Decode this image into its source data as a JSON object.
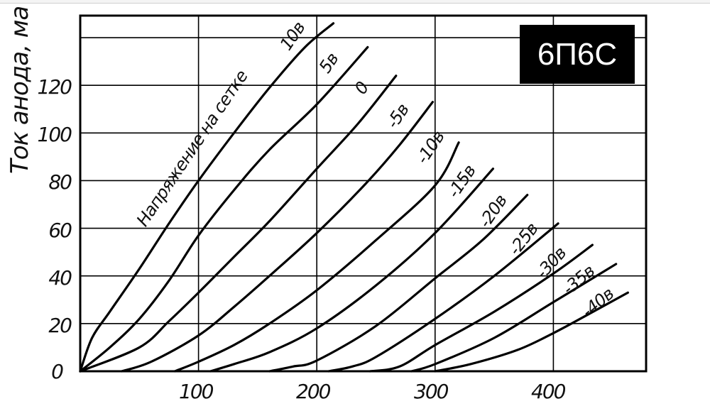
{
  "chart_data": {
    "type": "line",
    "title": "6П6С",
    "xlabel": "",
    "ylabel": "Ток анода, ма",
    "xlim": [
      0,
      478
    ],
    "ylim": [
      0,
      149
    ],
    "x_ticks": [
      "100",
      "200",
      "300",
      "400"
    ],
    "y_ticks": [
      "0",
      "20",
      "40",
      "60",
      "80",
      "100",
      "120"
    ],
    "grid": true,
    "grid_x": [
      100,
      200,
      300,
      400
    ],
    "grid_y": [
      20,
      40,
      60,
      80,
      100,
      120,
      140
    ],
    "legend_title": "Напряжение на сетке",
    "series": [
      {
        "name": "10в",
        "points": [
          [
            0,
            0
          ],
          [
            10,
            14
          ],
          [
            25,
            25
          ],
          [
            50,
            43
          ],
          [
            75,
            62
          ],
          [
            100,
            80
          ],
          [
            130,
            100
          ],
          [
            160,
            119
          ],
          [
            190,
            136
          ],
          [
            214,
            146
          ]
        ]
      },
      {
        "name": "5в",
        "points": [
          [
            0,
            0
          ],
          [
            25,
            10
          ],
          [
            50,
            22
          ],
          [
            75,
            38
          ],
          [
            100,
            57
          ],
          [
            130,
            76
          ],
          [
            160,
            93
          ],
          [
            200,
            112
          ],
          [
            243,
            136
          ]
        ]
      },
      {
        "name": "0",
        "points": [
          [
            0,
            0
          ],
          [
            50,
            10
          ],
          [
            75,
            21
          ],
          [
            100,
            33
          ],
          [
            130,
            48
          ],
          [
            160,
            63
          ],
          [
            200,
            85
          ],
          [
            235,
            104
          ],
          [
            267,
            124
          ]
        ]
      },
      {
        "name": "-5в",
        "points": [
          [
            35,
            0
          ],
          [
            60,
            4
          ],
          [
            100,
            15
          ],
          [
            130,
            27
          ],
          [
            160,
            40
          ],
          [
            200,
            58
          ],
          [
            240,
            78
          ],
          [
            270,
            95
          ],
          [
            298,
            113
          ]
        ]
      },
      {
        "name": "-10в",
        "points": [
          [
            80,
            0
          ],
          [
            100,
            4
          ],
          [
            130,
            11
          ],
          [
            160,
            20
          ],
          [
            200,
            34
          ],
          [
            250,
            55
          ],
          [
            300,
            78
          ],
          [
            320,
            96
          ]
        ]
      },
      {
        "name": "-15в",
        "points": [
          [
            110,
            0
          ],
          [
            130,
            3
          ],
          [
            160,
            8
          ],
          [
            200,
            18
          ],
          [
            250,
            36
          ],
          [
            300,
            58
          ],
          [
            349,
            85
          ]
        ]
      },
      {
        "name": "-20в",
        "points": [
          [
            160,
            0
          ],
          [
            180,
            2
          ],
          [
            200,
            4.5
          ],
          [
            250,
            19
          ],
          [
            300,
            39
          ],
          [
            340,
            55
          ],
          [
            378,
            74
          ]
        ]
      },
      {
        "name": "-25в",
        "points": [
          [
            210,
            0
          ],
          [
            230,
            2
          ],
          [
            250,
            6
          ],
          [
            300,
            22
          ],
          [
            350,
            40
          ],
          [
            404,
            62
          ]
        ]
      },
      {
        "name": "-30в",
        "points": [
          [
            245,
            0
          ],
          [
            270,
            2
          ],
          [
            300,
            11
          ],
          [
            350,
            25
          ],
          [
            400,
            41
          ],
          [
            433,
            53
          ]
        ]
      },
      {
        "name": "-35в",
        "points": [
          [
            280,
            0
          ],
          [
            300,
            3
          ],
          [
            350,
            14
          ],
          [
            400,
            29
          ],
          [
            453,
            45
          ]
        ]
      },
      {
        "name": "-40в",
        "points": [
          [
            300,
            0
          ],
          [
            330,
            3
          ],
          [
            370,
            9
          ],
          [
            400,
            16
          ],
          [
            430,
            24
          ],
          [
            463,
            33
          ]
        ]
      }
    ]
  },
  "page": {
    "badge": "6П6С",
    "ylabel": "Ток анода, ма",
    "legend_title": "Напряжение на сетке",
    "x_ticks": [
      "100",
      "200",
      "300",
      "400"
    ],
    "y_ticks": [
      "0",
      "20",
      "40",
      "60",
      "80",
      "100",
      "120"
    ],
    "curve_labels": [
      "10в",
      "5в",
      "0",
      "-5в",
      "-10в",
      "-15в",
      "-20в",
      "-25в",
      "-30в",
      "-35в",
      "-40в"
    ]
  }
}
